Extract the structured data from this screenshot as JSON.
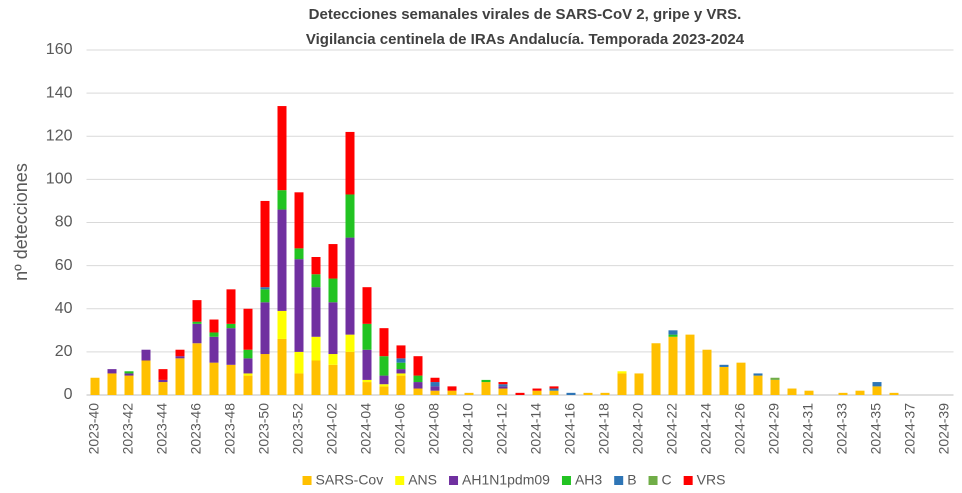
{
  "chart_data": {
    "type": "stacked-bar",
    "title": [
      "Detecciones semanales virales de SARS-CoV 2, gripe y VRS.",
      "Vigilancia centinela de IRAs Andalucía. Temporada 2023-2024"
    ],
    "y_label": "nº detecciones",
    "categories": [
      "2023-40",
      null,
      "2023-42",
      null,
      "2023-44",
      null,
      "2023-46",
      null,
      "2023-48",
      null,
      "2023-50",
      null,
      "2023-52",
      null,
      "2024-02",
      null,
      "2024-04",
      null,
      "2024-06",
      null,
      "2024-08",
      null,
      "2024-10",
      null,
      "2024-12",
      null,
      "2024-14",
      null,
      "2024-16",
      null,
      "2024-18",
      null,
      "2024-20",
      null,
      "2024-22",
      null,
      "2024-24",
      null,
      "2024-26",
      null,
      "2024-29",
      null,
      "2024-31",
      null,
      "2024-33",
      null,
      "2024-35",
      null,
      "2024-37",
      null,
      "2024-39"
    ],
    "ylim": [
      0,
      160
    ],
    "yticks": [
      0,
      20,
      40,
      60,
      80,
      100,
      120,
      140,
      160
    ],
    "grid": true,
    "legend": "bottom",
    "series": [
      {
        "name": "SARS-Cov",
        "color": "#ffc000",
        "values": [
          8,
          10,
          9,
          16,
          6,
          17,
          24,
          15,
          14,
          9,
          19,
          26,
          10,
          16,
          14,
          20,
          6,
          4,
          9,
          3,
          2,
          2,
          1,
          6,
          3,
          0,
          2,
          2,
          0,
          1,
          1,
          10,
          10,
          24,
          27,
          28,
          21,
          13,
          15,
          9,
          7,
          3,
          2,
          0,
          1,
          2,
          4,
          1,
          0,
          0,
          0
        ]
      },
      {
        "name": "ANS",
        "color": "#ffff00",
        "values": [
          0,
          0,
          0,
          0,
          0,
          0,
          0,
          0,
          0,
          1,
          0,
          13,
          10,
          11,
          5,
          8,
          1,
          1,
          1,
          0,
          0,
          0,
          0,
          0,
          0,
          0,
          0,
          0,
          0,
          0,
          0,
          1,
          0,
          0,
          0,
          0,
          0,
          0,
          0,
          0,
          0,
          0,
          0,
          0,
          0,
          0,
          0,
          0,
          0,
          0,
          0
        ]
      },
      {
        "name": "AH1N1pdm09",
        "color": "#7030a0",
        "values": [
          0,
          2,
          1,
          5,
          1,
          1,
          9,
          12,
          17,
          7,
          24,
          47,
          43,
          23,
          24,
          45,
          14,
          4,
          2,
          3,
          2,
          0,
          0,
          0,
          1,
          0,
          0,
          0,
          0,
          0,
          0,
          0,
          0,
          0,
          0,
          0,
          0,
          0,
          0,
          0,
          0,
          0,
          0,
          0,
          0,
          0,
          0,
          0,
          0,
          0,
          0
        ]
      },
      {
        "name": "AH3",
        "color": "#22c322",
        "values": [
          0,
          0,
          1,
          0,
          0,
          0,
          1,
          2,
          2,
          4,
          6,
          9,
          5,
          6,
          11,
          20,
          12,
          9,
          3,
          3,
          0,
          0,
          0,
          1,
          0,
          0,
          0,
          0,
          0,
          0,
          0,
          0,
          0,
          0,
          1,
          0,
          0,
          0,
          0,
          0,
          0,
          0,
          0,
          0,
          0,
          0,
          0,
          0,
          0,
          0,
          0
        ]
      },
      {
        "name": "B",
        "color": "#2e75b6",
        "values": [
          0,
          0,
          0,
          0,
          0,
          0,
          0,
          0,
          0,
          0,
          1,
          0,
          0,
          0,
          0,
          0,
          0,
          0,
          2,
          0,
          2,
          0,
          0,
          0,
          1,
          0,
          0,
          1,
          1,
          0,
          0,
          0,
          0,
          0,
          2,
          0,
          0,
          1,
          0,
          1,
          0,
          0,
          0,
          0,
          0,
          0,
          2,
          0,
          0,
          0,
          0
        ]
      },
      {
        "name": "C",
        "color": "#70ad47",
        "values": [
          0,
          0,
          0,
          0,
          0,
          0,
          0,
          0,
          0,
          0,
          0,
          0,
          0,
          0,
          0,
          0,
          0,
          0,
          0,
          0,
          0,
          0,
          0,
          0,
          0,
          0,
          0,
          0,
          0,
          0,
          0,
          0,
          0,
          0,
          0,
          0,
          0,
          0,
          0,
          0,
          1,
          0,
          0,
          0,
          0,
          0,
          0,
          0,
          0,
          0,
          0
        ]
      },
      {
        "name": "VRS",
        "color": "#ff0000",
        "values": [
          0,
          0,
          0,
          0,
          5,
          3,
          10,
          6,
          16,
          19,
          40,
          39,
          26,
          8,
          16,
          29,
          17,
          13,
          6,
          9,
          2,
          2,
          0,
          0,
          1,
          1,
          1,
          1,
          0,
          0,
          0,
          0,
          0,
          0,
          0,
          0,
          0,
          0,
          0,
          0,
          0,
          0,
          0,
          0,
          0,
          0,
          0,
          0,
          0,
          0,
          0
        ]
      }
    ]
  }
}
